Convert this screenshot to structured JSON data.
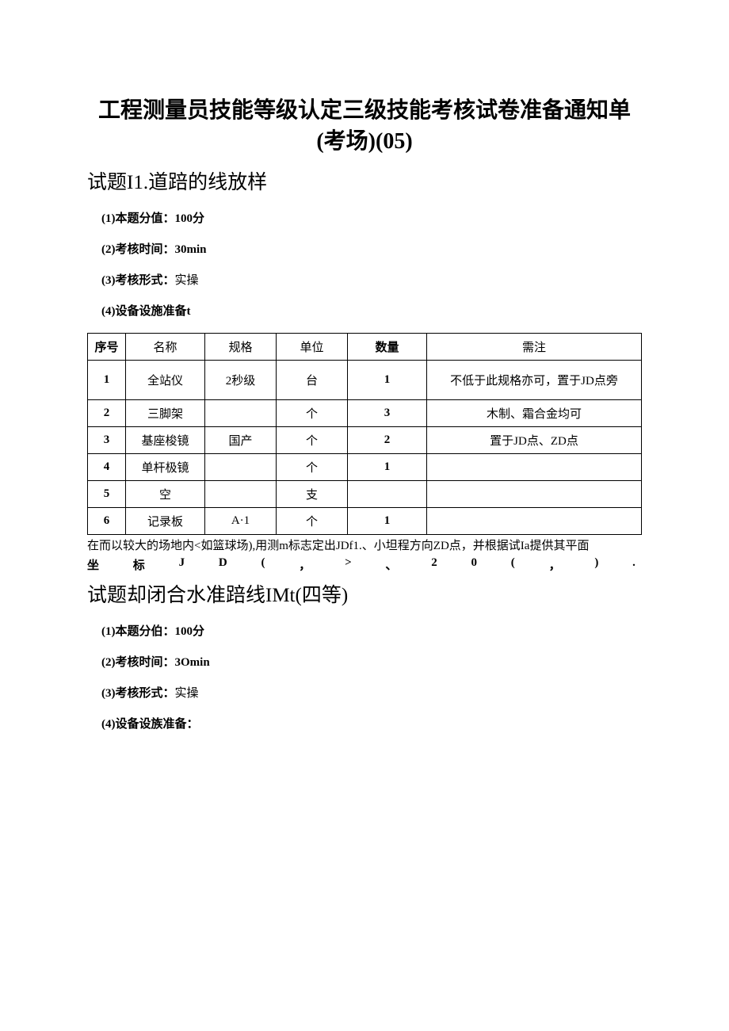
{
  "title": "工程测量员技能等级认定三级技能考核试卷准备通知单(考场)(05)",
  "section1": {
    "heading": "试题I1.道踣的线放样",
    "items": [
      {
        "label": "(1)本题分值：",
        "value": "100分",
        "bold": true
      },
      {
        "label": "(2)考核时间：",
        "value": "30min",
        "bold": true
      },
      {
        "label": "(3)考核形式：",
        "value": "实操",
        "bold": false
      },
      {
        "label": "(4)设备设施准备t",
        "value": "",
        "bold": true
      }
    ],
    "table": {
      "headers": [
        "序号",
        "名称",
        "规格",
        "单位",
        "数量",
        "需注"
      ],
      "rows": [
        {
          "seq": "1",
          "name": "全站仪",
          "spec": "2秒级",
          "unit": "台",
          "qty": "1",
          "note": "不低于此规格亦可，置于JD点旁",
          "tall": true
        },
        {
          "seq": "2",
          "name": "三脚架",
          "spec": "",
          "unit": "个",
          "qty": "3",
          "note": "木制、霜合金均可",
          "tall": false
        },
        {
          "seq": "3",
          "name": "基座梭镜",
          "spec": "国产",
          "unit": "个",
          "qty": "2",
          "note": "置于JD点、ZD点",
          "tall": false
        },
        {
          "seq": "4",
          "name": "单杆极镜",
          "spec": "",
          "unit": "个",
          "qty": "1",
          "note": "",
          "tall": false
        },
        {
          "seq": "5",
          "name": "空",
          "spec": "",
          "unit": "支",
          "qty": "",
          "note": "",
          "tall": false
        },
        {
          "seq": "6",
          "name": "记录板",
          "spec": "A·1",
          "unit": "个",
          "qty": "1",
          "note": "",
          "tall": false
        }
      ]
    },
    "paragraph": "在而以较大的场地内<如篮球场),用测m标志定出JDf1.、小坦程方向ZD点，并根据试Ia提供其平面",
    "spacedChars": [
      "坐",
      "标",
      "J",
      "D",
      "(",
      "，",
      ">",
      "、",
      "2",
      "0",
      "(",
      "，",
      ")",
      "."
    ]
  },
  "section2": {
    "heading": "试题却闭合水准踣线IMt(四等)",
    "items": [
      {
        "label": "(1)本题分伯：",
        "value": "100分",
        "bold": true
      },
      {
        "label": "(2)考核时间：",
        "value": "3Omin",
        "bold": true
      },
      {
        "label": "(3)考核形式：",
        "value": "实操",
        "bold": false
      },
      {
        "label": "(4)设备设族准备：",
        "value": "",
        "bold": false
      }
    ]
  }
}
